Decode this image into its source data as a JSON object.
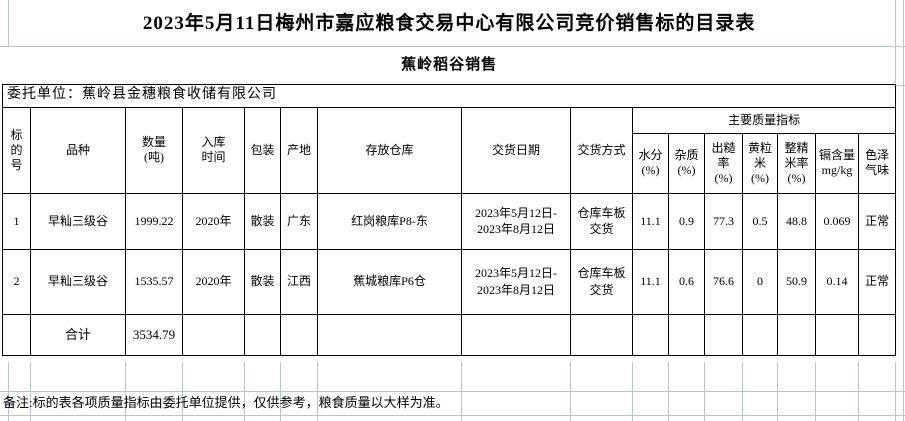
{
  "colors": {
    "table_border": "#000000",
    "gridline": "#bcc3cf",
    "text": "#000000",
    "background": "#ffffff"
  },
  "title": "2023年5月11日梅州市嘉应粮食交易中心有限公司竞价销售标的目录表",
  "subtitle": "蕉岭稻谷销售",
  "consignor": "委托单位：蕉岭县金穗粮食收储有限公司",
  "headers": {
    "bid_no": "标\n的\n号",
    "variety": "品种",
    "quantity": "数量\n(吨)",
    "intake_time": "入库\n时间",
    "packaging": "包装",
    "origin": "产地",
    "warehouse": "存放仓库",
    "delivery_date": "交货日期",
    "delivery_method": "交货方式",
    "quality_group": "主要质量指标",
    "moisture": "水分\n(%)",
    "impurity": "杂质\n(%)",
    "brown_rice_rate": "出糙\n率\n(%)",
    "yellow_grain": "黄粒\n米\n(%)",
    "head_rice_rate": "整精\n米率\n(%)",
    "cadmium": "镉含量\nmg/kg",
    "color_odor": "色泽\n气味"
  },
  "rows": [
    {
      "cells": [
        "1",
        "早籼三级谷",
        "1999.22",
        "2020年",
        "散装",
        "广东",
        "红岗粮库P8-东",
        "2023年5月12日-\n2023年8月12日",
        "仓库车板\n交货",
        "11.1",
        "0.9",
        "77.3",
        "0.5",
        "48.8",
        "0.069",
        "正常"
      ]
    },
    {
      "cells": [
        "2",
        "早籼三级谷",
        "1535.57",
        "2020年",
        "散装",
        "江西",
        "蕉城粮库P6仓",
        "2023年5月12日-\n2023年8月12日",
        "仓库车板\n交货",
        "11.1",
        "0.6",
        "76.6",
        "0",
        "50.9",
        "0.14",
        "正常"
      ]
    }
  ],
  "total": {
    "label": "合计",
    "quantity": "3534.79"
  },
  "note": "备注:标的表各项质量指标由委托单位提供，仅供参考，粮食质量以大样为准。"
}
